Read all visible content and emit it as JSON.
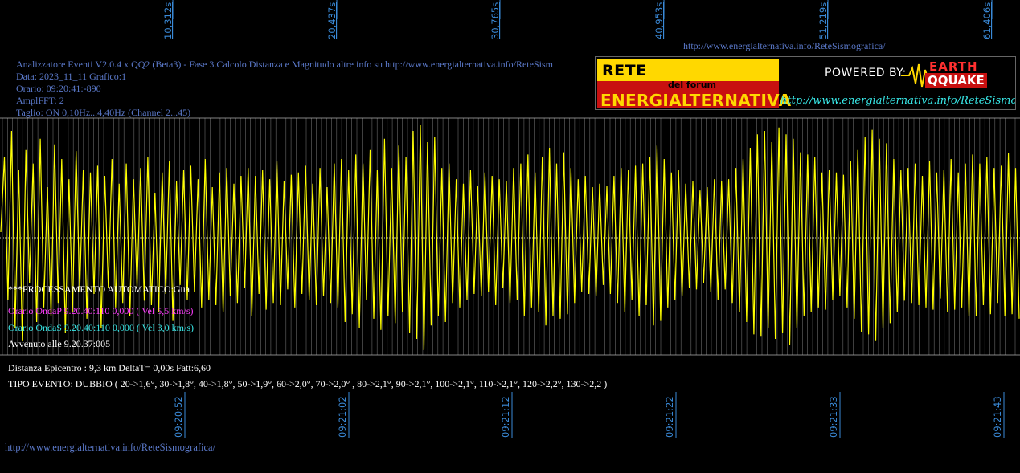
{
  "top_url": "http://www.energialternativa.info/ReteSismografica/",
  "bottom_url": "http://www.energialternativa.info/ReteSismografica/",
  "header": {
    "line1": "Analizzatore Eventi V2.0.4 x QQ2 (Beta3) - Fase 3.Calcolo Distanza e Magnitudo altre info su http://www.energialternativa.info/ReteSism",
    "line2": "Data: 2023_11_11 Grafico:1",
    "line3": "Orario: 09:20:41:-890",
    "line4": "AmplFFT: 2",
    "line5": "Taglio: ON 0,10Hz...4,40Hz       (Channel 2...45)"
  },
  "logo": {
    "line1": "RETE SISMOGRAFICA",
    "line2": "del forum",
    "line3": "ENERGIALTERNATIVA",
    "powered": "POWERED BY:",
    "brand1": "EARTH",
    "brand2": "QQUAKE",
    "url": "http://www.energialternativa.info/ReteSismografica",
    "colors": {
      "yellow": "#ffd800",
      "red": "#c81010",
      "cyan": "#38e8e8"
    }
  },
  "processing": {
    "line1": "***PROCESSAMENTO AUTOMATICO:Gua",
    "onda_p": "Orario OndaP 9.20.40:110  0,000 ( Vel 5,5 km/s)",
    "onda_s": "Orario OndaS 9.20.40:110  0,000 ( Vel 3,0 km/s)",
    "avvenuto": "Avvenuto alle 9.20.37:005"
  },
  "result": {
    "distanza": "Distanza Epicentro : 9,3 km DeltaT= 0,00s  Fatt:6,60",
    "tipo": "TIPO EVENTO: DUBBIO ( 20->1,6°, 30->1,8°, 40->1,8°, 50->1,9°, 60->2,0°, 70->2,0° , 80->2,1°, 90->2,1°, 100->2,1°, 110->2,1°, 120->2,2°, 130->2,2 )"
  },
  "chart_data": {
    "type": "line",
    "top_ticks": [
      "10,312s",
      "20,437s",
      "30,765s",
      "40,953s",
      "51,219s",
      "61,406s"
    ],
    "bottom_ticks": [
      "09:20:52",
      "09:21:02",
      "09:21:12",
      "09:21:22",
      "09:21:33",
      "09:21:43"
    ],
    "grid": true,
    "series": [
      {
        "color": "#ffff00",
        "values": [
          0.05,
          0.72,
          -0.55,
          0.95,
          -0.8,
          0.6,
          -0.92,
          0.78,
          -0.4,
          0.66,
          -0.75,
          0.88,
          -0.62,
          0.45,
          -0.7,
          0.83,
          -0.58,
          0.7,
          -0.85,
          0.52,
          -0.66,
          0.77,
          -0.48,
          0.6,
          -0.72,
          0.58,
          -0.5,
          0.64,
          -0.8,
          0.55,
          -0.45,
          0.7,
          -0.62,
          0.48,
          -0.58,
          0.66,
          -0.7,
          0.52,
          -0.44,
          0.62,
          -0.56,
          0.72,
          -0.6,
          0.4,
          -0.66,
          0.58,
          -0.5,
          0.68,
          -0.74,
          0.5,
          -0.42,
          0.6,
          -0.55,
          0.64,
          -0.48,
          0.52,
          -0.62,
          0.7,
          -0.55,
          0.45,
          -0.6,
          0.58,
          -0.66,
          0.62,
          -0.52,
          0.48,
          -0.58,
          0.55,
          -0.45,
          0.62,
          -0.7,
          0.55,
          -0.5,
          0.6,
          -0.64,
          0.52,
          -0.58,
          0.68,
          -0.6,
          0.5,
          -0.46,
          0.56,
          -0.62,
          0.58,
          -0.5,
          0.64,
          -0.55,
          0.48,
          -0.6,
          0.62,
          -0.52,
          0.45,
          -0.58,
          0.66,
          -0.62,
          0.7,
          -0.75,
          0.6,
          -0.68,
          0.74,
          -0.8,
          0.66,
          -0.55,
          0.78,
          -0.72,
          0.6,
          -0.82,
          0.88,
          -0.7,
          0.62,
          -0.76,
          0.82,
          -0.66,
          0.72,
          -0.85,
          0.95,
          -0.9,
          1.0,
          -1.0,
          0.85,
          -0.78,
          0.9,
          -0.7,
          0.62,
          -0.75,
          0.66,
          -0.58,
          0.52,
          -0.62,
          0.48,
          -0.55,
          0.6,
          -0.5,
          0.46,
          -0.52,
          0.58,
          -0.48,
          0.55,
          -0.6,
          0.52,
          -0.45,
          0.5,
          -0.58,
          0.62,
          -0.55,
          0.66,
          -0.7,
          0.74,
          -0.62,
          0.58,
          -0.66,
          0.72,
          -0.78,
          0.8,
          -0.7,
          0.66,
          -0.72,
          0.76,
          -0.68,
          0.62,
          -0.58,
          0.52,
          -0.48,
          0.55,
          -0.5,
          0.45,
          -0.52,
          0.48,
          -0.42,
          0.46,
          -0.5,
          0.55,
          -0.58,
          0.62,
          -0.66,
          0.6,
          -0.55,
          0.64,
          -0.7,
          0.66,
          -0.6,
          0.72,
          -0.78,
          0.82,
          -0.74,
          0.7,
          -0.62,
          0.58,
          -0.55,
          0.6,
          -0.52,
          0.48,
          -0.45,
          0.5,
          -0.46,
          0.42,
          -0.4,
          0.45,
          -0.48,
          0.52,
          -0.55,
          0.5,
          -0.46,
          0.52,
          -0.58,
          0.62,
          -0.66,
          0.7,
          -0.75,
          0.8,
          -0.86,
          0.92,
          -0.88,
          0.95,
          -0.8,
          0.85,
          -0.9,
          0.98,
          -0.85,
          0.92,
          -0.95,
          0.88,
          -0.8,
          0.76,
          -0.7,
          0.74,
          -0.66,
          0.72,
          -0.62,
          0.58,
          -0.64,
          0.6,
          -0.55,
          0.58,
          -0.52,
          0.56,
          -0.62,
          0.68,
          -0.72,
          0.78,
          -0.84,
          0.9,
          -0.86,
          0.96,
          -0.92,
          0.88,
          -0.8,
          0.84,
          -0.76,
          0.7,
          -0.66,
          0.6,
          -0.56,
          0.62,
          -0.58,
          0.66,
          -0.6,
          0.55,
          -0.62,
          0.68,
          -0.64,
          0.58,
          -0.54,
          0.6,
          -0.66,
          0.7,
          -0.64,
          0.58,
          -0.62,
          0.66,
          -0.7,
          0.74,
          -0.7,
          0.66,
          -0.6,
          0.72,
          -0.68,
          0.62,
          -0.58,
          0.64,
          -0.7,
          0.75,
          -0.68,
          0.62,
          -0.72
        ]
      }
    ]
  }
}
